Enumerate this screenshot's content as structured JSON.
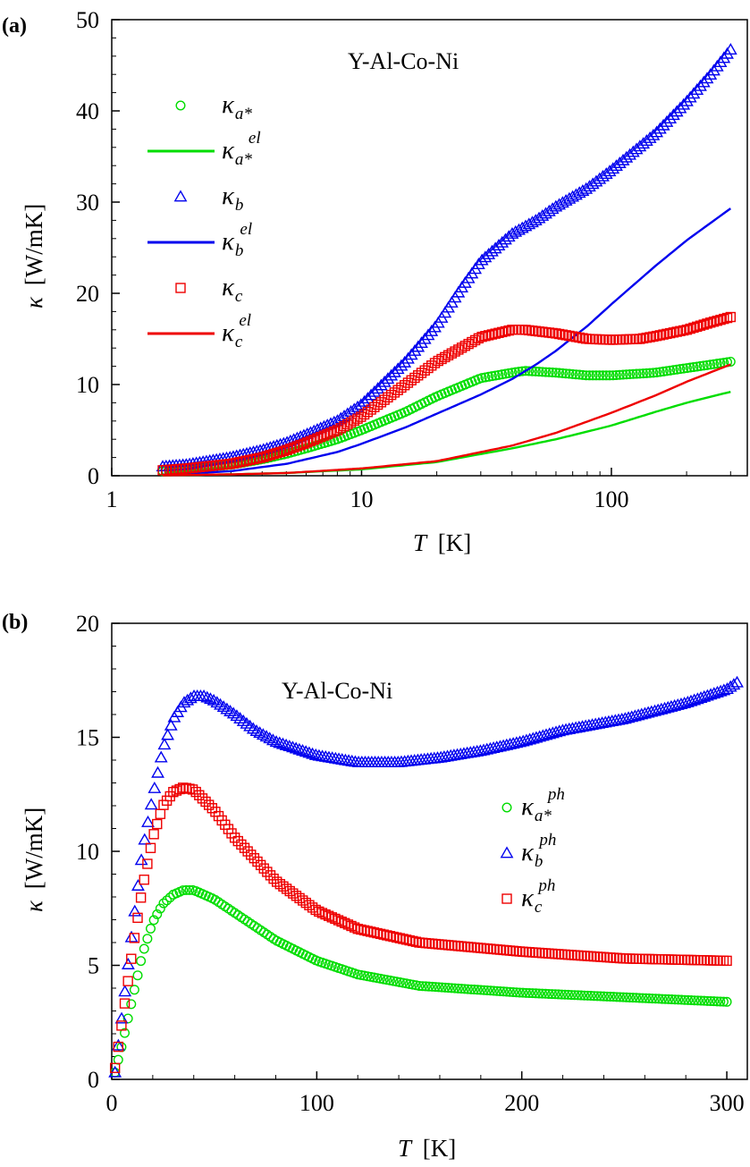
{
  "chart_data": [
    {
      "panel": "(a)",
      "type": "scatter",
      "title": "Y-Al-Co-Ni",
      "xlabel": {
        "symbol": "T",
        "unit": "[K]"
      },
      "ylabel": {
        "symbol": "κ",
        "unit": "[W/mK]"
      },
      "xscale": "log",
      "xlim": [
        1,
        350
      ],
      "ylim": [
        0,
        50
      ],
      "xticks": [
        1,
        10,
        100
      ],
      "yticks": [
        0,
        10,
        20,
        30,
        40,
        50
      ],
      "legend_position": "top-left",
      "series": [
        {
          "name": "κa*",
          "label": {
            "base": "κ",
            "sub": "a*",
            "sup": ""
          },
          "marker": "circle",
          "color": "#00dd00",
          "x": [
            1.6,
            2,
            3,
            4,
            5,
            6,
            8,
            10,
            15,
            20,
            30,
            40,
            45,
            60,
            80,
            100,
            150,
            200,
            300
          ],
          "y": [
            0.5,
            0.8,
            1.2,
            1.8,
            2.4,
            3.0,
            4.0,
            5.0,
            7.0,
            8.7,
            10.7,
            11.3,
            11.5,
            11.3,
            11.0,
            11.0,
            11.3,
            11.8,
            12.5
          ]
        },
        {
          "name": "κa*el",
          "label": {
            "base": "κ",
            "sub": "a*",
            "sup": "el"
          },
          "marker": "line",
          "color": "#00dd00",
          "x": [
            1.6,
            3,
            5,
            10,
            20,
            40,
            60,
            100,
            150,
            200,
            300
          ],
          "y": [
            0.05,
            0.15,
            0.3,
            0.7,
            1.5,
            3.0,
            4.0,
            5.5,
            7.0,
            8.0,
            9.2
          ]
        },
        {
          "name": "κb",
          "label": {
            "base": "κ",
            "sub": "b",
            "sup": ""
          },
          "marker": "triangle",
          "color": "#0000ee",
          "x": [
            1.6,
            2,
            3,
            4,
            5,
            6,
            8,
            10,
            15,
            20,
            25,
            30,
            40,
            50,
            60,
            80,
            100,
            150,
            200,
            250,
            300
          ],
          "y": [
            1.0,
            1.2,
            2.0,
            2.8,
            3.6,
            4.5,
            6.0,
            7.8,
            12.5,
            16.5,
            20.5,
            23.5,
            26.5,
            28.0,
            29.5,
            31.5,
            33.5,
            37.5,
            41.0,
            44.0,
            46.7
          ]
        },
        {
          "name": "κbel",
          "label": {
            "base": "κ",
            "sub": "b",
            "sup": "el"
          },
          "marker": "line",
          "color": "#0000ee",
          "x": [
            1.6,
            3,
            5,
            8,
            10,
            15,
            20,
            30,
            40,
            50,
            60,
            80,
            100,
            150,
            200,
            300
          ],
          "y": [
            0.1,
            0.5,
            1.3,
            2.6,
            3.5,
            5.3,
            6.8,
            8.9,
            10.6,
            12.2,
            13.7,
            16.4,
            18.8,
            23.0,
            25.8,
            29.3
          ]
        },
        {
          "name": "κc",
          "label": {
            "base": "κ",
            "sub": "c",
            "sup": ""
          },
          "marker": "square",
          "color": "#ee0000",
          "x": [
            1.6,
            2,
            3,
            4,
            5,
            6,
            8,
            10,
            15,
            20,
            30,
            40,
            45,
            60,
            80,
            100,
            130,
            150,
            200,
            250,
            300
          ],
          "y": [
            0.6,
            0.8,
            1.3,
            2.0,
            2.8,
            3.6,
            5.0,
            6.5,
            10.0,
            12.5,
            15.2,
            16.0,
            16.0,
            15.6,
            15.0,
            14.9,
            15.0,
            15.3,
            16.0,
            16.8,
            17.4
          ]
        },
        {
          "name": "κcel",
          "label": {
            "base": "κ",
            "sub": "c",
            "sup": "el"
          },
          "marker": "line",
          "color": "#ee0000",
          "x": [
            1.6,
            3,
            5,
            10,
            20,
            40,
            60,
            100,
            150,
            200,
            300
          ],
          "y": [
            0.05,
            0.15,
            0.3,
            0.8,
            1.6,
            3.3,
            4.7,
            6.9,
            8.8,
            10.3,
            12.2
          ]
        }
      ]
    },
    {
      "panel": "(b)",
      "type": "scatter",
      "title": "Y-Al-Co-Ni",
      "xlabel": {
        "symbol": "T",
        "unit": "[K]"
      },
      "ylabel": {
        "symbol": "κ",
        "unit": "[W/mK]"
      },
      "xscale": "linear",
      "xlim": [
        0,
        310
      ],
      "ylim": [
        0,
        20
      ],
      "xticks": [
        0,
        100,
        200,
        300
      ],
      "yticks": [
        0,
        5,
        10,
        15,
        20
      ],
      "legend_position": "center-right",
      "series": [
        {
          "name": "κa*ph",
          "label": {
            "base": "κ",
            "sub": "a*",
            "sup": "ph"
          },
          "marker": "circle",
          "color": "#00dd00",
          "x": [
            1.6,
            5,
            10,
            15,
            20,
            25,
            30,
            35,
            40,
            50,
            60,
            80,
            100,
            120,
            150,
            200,
            250,
            300
          ],
          "y": [
            0.3,
            1.5,
            3.5,
            5.5,
            6.9,
            7.7,
            8.1,
            8.3,
            8.3,
            7.9,
            7.3,
            6.1,
            5.2,
            4.6,
            4.1,
            3.8,
            3.6,
            3.4
          ]
        },
        {
          "name": "κbph",
          "label": {
            "base": "κ",
            "sub": "b",
            "sup": "ph"
          },
          "marker": "triangle",
          "color": "#0000ee",
          "x": [
            1.6,
            5,
            10,
            15,
            20,
            25,
            30,
            35,
            40,
            45,
            50,
            60,
            70,
            80,
            100,
            120,
            140,
            160,
            180,
            200,
            220,
            250,
            280,
            300,
            305
          ],
          "y": [
            0.3,
            2.8,
            6.5,
            10.0,
            12.4,
            14.5,
            15.8,
            16.5,
            16.8,
            16.8,
            16.6,
            16.0,
            15.3,
            14.8,
            14.2,
            13.9,
            13.9,
            14.1,
            14.4,
            14.8,
            15.3,
            15.8,
            16.5,
            17.1,
            17.4
          ]
        },
        {
          "name": "κcph",
          "label": {
            "base": "κ",
            "sub": "c",
            "sup": "ph"
          },
          "marker": "square",
          "color": "#ee0000",
          "x": [
            1.6,
            5,
            10,
            15,
            20,
            25,
            30,
            35,
            40,
            50,
            60,
            80,
            100,
            120,
            150,
            200,
            250,
            300
          ],
          "y": [
            0.5,
            2.5,
            5.6,
            8.4,
            10.6,
            12.0,
            12.6,
            12.8,
            12.7,
            11.8,
            10.6,
            8.7,
            7.4,
            6.6,
            6.0,
            5.6,
            5.3,
            5.2
          ]
        }
      ]
    }
  ]
}
